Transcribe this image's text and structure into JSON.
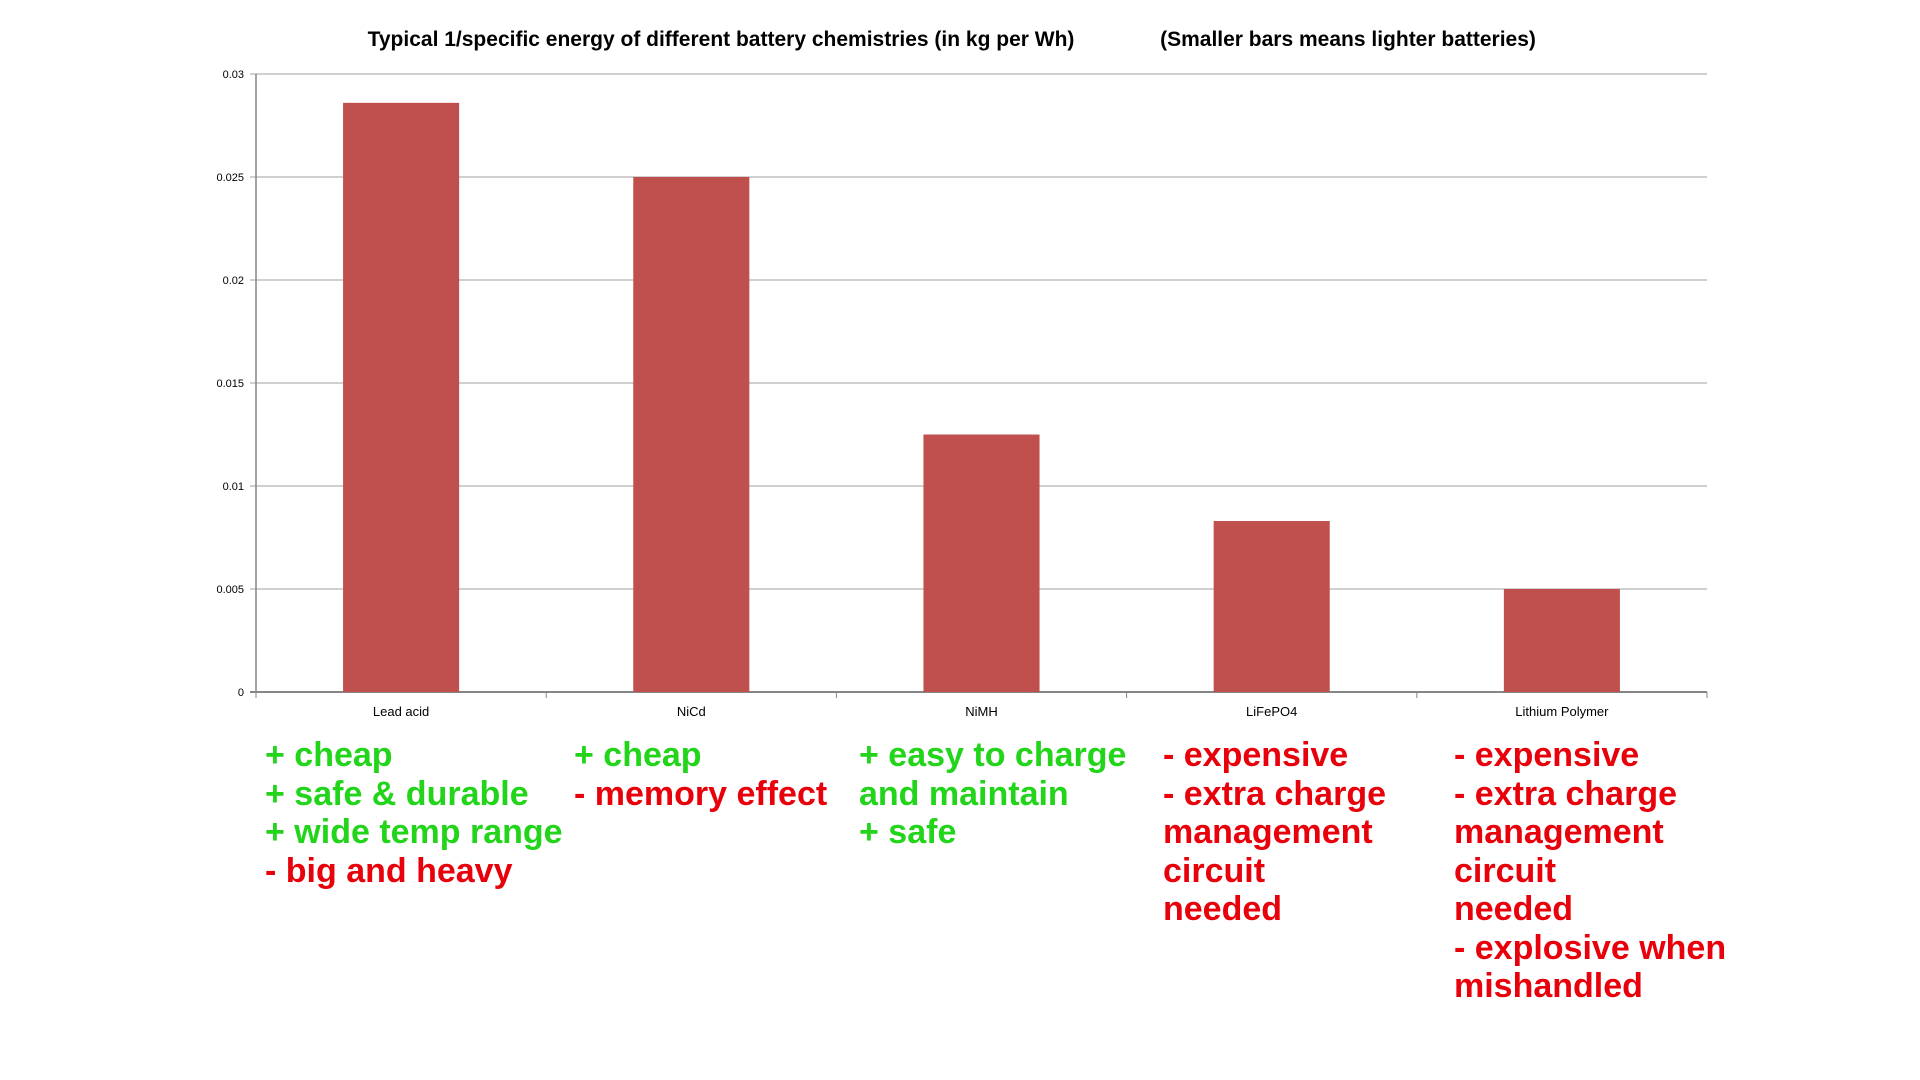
{
  "chart_data": {
    "type": "bar",
    "title": "Typical 1/specific energy of different battery chemistries (in kg per Wh)",
    "subtitle": "(Smaller bars means lighter batteries)",
    "categories": [
      "Lead acid",
      "NiCd",
      "NiMH",
      "LiFePO4",
      "Lithium Polymer"
    ],
    "values": [
      0.0286,
      0.025,
      0.0125,
      0.0083,
      0.005
    ],
    "ylim": [
      0,
      0.03
    ],
    "yticks": [
      "0",
      "0.005",
      "0.01",
      "0.015",
      "0.02",
      "0.025",
      "0.03"
    ],
    "xlabel": "",
    "ylabel": "",
    "grid": true,
    "bar_color": "#c0504d"
  },
  "notes": [
    [
      {
        "t": "+ cheap",
        "k": "pro"
      },
      {
        "t": "+ safe & durable",
        "k": "pro"
      },
      {
        "t": "+ wide temp range",
        "k": "pro"
      },
      {
        "t": "- big and heavy",
        "k": "con"
      }
    ],
    [
      {
        "t": "+ cheap",
        "k": "pro"
      },
      {
        "t": "- memory effect",
        "k": "con"
      }
    ],
    [
      {
        "t": "+ easy to charge",
        "k": "pro"
      },
      {
        "t": "and maintain",
        "k": "pro"
      },
      {
        "t": "+ safe",
        "k": "pro"
      }
    ],
    [
      {
        "t": "- expensive",
        "k": "con"
      },
      {
        "t": "- extra charge",
        "k": "con"
      },
      {
        "t": "management",
        "k": "con"
      },
      {
        "t": "circuit",
        "k": "con"
      },
      {
        "t": "needed",
        "k": "con"
      }
    ],
    [
      {
        "t": "- expensive",
        "k": "con"
      },
      {
        "t": "- extra charge",
        "k": "con"
      },
      {
        "t": "management",
        "k": "con"
      },
      {
        "t": "circuit",
        "k": "con"
      },
      {
        "t": "needed",
        "k": "con"
      },
      {
        "t": "- explosive when",
        "k": "con"
      },
      {
        "t": "mishandled",
        "k": "con"
      }
    ]
  ],
  "colors": {
    "pro": "#22d41a",
    "con": "#e8000b"
  }
}
